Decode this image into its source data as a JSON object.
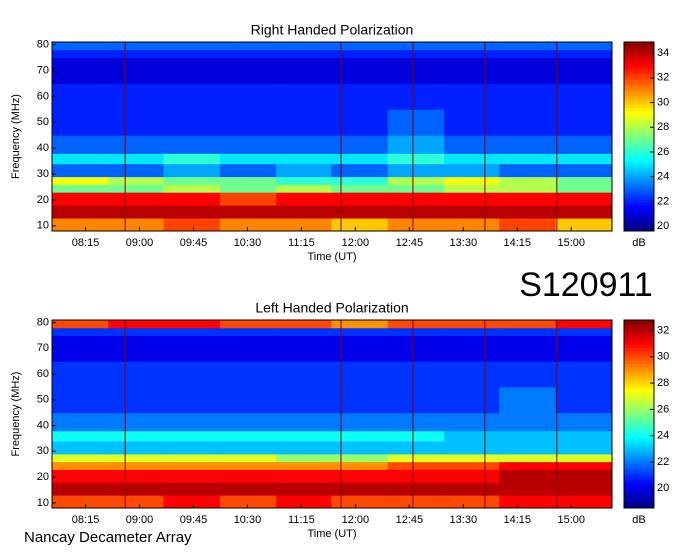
{
  "label": "S120911",
  "footer": "Nancay Decameter Array",
  "chart_data": [
    {
      "type": "heatmap",
      "title": "Right Handed Polarization",
      "x_label": "Time (UT)",
      "y_label": "Frequency (MHz)",
      "colorbar_label": "dB",
      "xlim": [
        467,
        934
      ],
      "ylim": [
        8,
        81
      ],
      "xticks": [
        {
          "value": 495,
          "label": "08:15"
        },
        {
          "value": 540,
          "label": "09:00"
        },
        {
          "value": 585,
          "label": "09:45"
        },
        {
          "value": 630,
          "label": "10:30"
        },
        {
          "value": 675,
          "label": "11:15"
        },
        {
          "value": 720,
          "label": "12:00"
        },
        {
          "value": 765,
          "label": "12:45"
        },
        {
          "value": 810,
          "label": "13:30"
        },
        {
          "value": 855,
          "label": "14:15"
        },
        {
          "value": 900,
          "label": "15:00"
        }
      ],
      "yticks": [
        10,
        20,
        30,
        40,
        50,
        60,
        70,
        80
      ],
      "clim": [
        19.6,
        34.9
      ],
      "cticks": [
        20,
        22,
        24,
        26,
        28,
        30,
        32,
        34
      ],
      "colormap": "jet",
      "markers": {
        "x": [
          528,
          708,
          768,
          828,
          888
        ],
        "color": "#8b0000"
      },
      "x_bins": [
        467,
        514,
        560,
        607,
        654,
        700,
        747,
        794,
        840,
        887,
        934
      ],
      "y_bins": [
        8,
        13,
        18,
        23,
        26,
        29,
        34,
        38,
        45,
        55,
        65,
        75,
        78,
        81
      ],
      "values": [
        [
          31,
          31,
          32,
          31,
          31,
          30,
          31,
          31,
          32,
          30
        ],
        [
          34,
          34,
          34,
          34,
          34,
          34,
          34,
          34,
          34,
          34
        ],
        [
          33,
          33,
          33,
          32,
          33,
          33,
          33,
          33,
          33,
          33
        ],
        [
          27,
          27,
          28,
          27,
          28,
          27,
          27,
          28,
          28,
          27
        ],
        [
          29,
          28,
          27,
          27,
          26,
          26,
          28,
          29,
          28,
          27
        ],
        [
          23,
          23,
          24,
          23,
          24,
          23,
          24,
          24,
          23,
          23
        ],
        [
          25,
          25,
          26,
          25,
          25,
          25,
          26,
          25,
          25,
          25
        ],
        [
          23,
          23,
          23,
          23,
          23,
          23,
          24,
          23,
          23,
          23
        ],
        [
          22,
          22,
          22,
          22,
          22,
          22,
          23,
          22,
          22,
          22
        ],
        [
          22,
          22,
          22,
          22,
          22,
          22,
          22,
          22,
          22,
          22
        ],
        [
          21,
          21,
          21,
          21,
          21,
          21,
          21,
          21,
          21,
          21
        ],
        [
          22,
          22,
          22,
          22,
          22,
          22,
          22,
          22,
          22,
          22
        ],
        [
          23,
          23,
          23,
          23,
          23,
          23,
          23,
          23,
          23,
          23
        ]
      ]
    },
    {
      "type": "heatmap",
      "title": "Left Handed Polarization",
      "x_label": "Time (UT)",
      "y_label": "Frequency (MHz)",
      "colorbar_label": "dB",
      "xlim": [
        467,
        934
      ],
      "ylim": [
        8,
        81
      ],
      "xticks": [
        {
          "value": 495,
          "label": "08:15"
        },
        {
          "value": 540,
          "label": "09:00"
        },
        {
          "value": 585,
          "label": "09:45"
        },
        {
          "value": 630,
          "label": "10:30"
        },
        {
          "value": 675,
          "label": "11:15"
        },
        {
          "value": 720,
          "label": "12:00"
        },
        {
          "value": 765,
          "label": "12:45"
        },
        {
          "value": 810,
          "label": "13:30"
        },
        {
          "value": 855,
          "label": "14:15"
        },
        {
          "value": 900,
          "label": "15:00"
        }
      ],
      "yticks": [
        10,
        20,
        30,
        40,
        50,
        60,
        70,
        80
      ],
      "clim": [
        18.5,
        32.8
      ],
      "cticks": [
        20,
        22,
        24,
        26,
        28,
        30,
        32
      ],
      "colormap": "jet",
      "markers": {
        "x": [
          528,
          708,
          768,
          828,
          888
        ],
        "color": "#8b0000"
      },
      "x_bins": [
        467,
        514,
        560,
        607,
        654,
        700,
        747,
        794,
        840,
        887,
        934
      ],
      "y_bins": [
        8,
        13,
        18,
        23,
        26,
        29,
        34,
        38,
        45,
        55,
        65,
        75,
        78,
        81
      ],
      "values": [
        [
          30,
          30,
          31,
          30,
          31,
          30,
          30,
          30,
          31,
          31
        ],
        [
          32,
          32,
          32,
          32,
          32,
          32,
          32,
          32,
          32,
          32
        ],
        [
          31,
          31,
          31,
          31,
          31,
          31,
          31,
          31,
          32,
          32
        ],
        [
          29,
          29,
          29,
          29,
          29,
          29,
          30,
          30,
          31,
          31
        ],
        [
          27,
          27,
          27,
          27,
          26,
          26,
          27,
          27,
          27,
          27
        ],
        [
          23,
          23,
          23,
          23,
          23,
          23,
          23,
          23,
          23,
          23
        ],
        [
          24,
          24,
          24,
          24,
          24,
          24,
          24,
          23,
          23,
          23
        ],
        [
          22,
          22,
          22,
          22,
          22,
          22,
          22,
          22,
          22,
          22
        ],
        [
          21,
          21,
          21,
          21,
          21,
          21,
          21,
          21,
          22,
          21
        ],
        [
          21,
          21,
          21,
          21,
          21,
          21,
          21,
          21,
          21,
          21
        ],
        [
          20,
          20,
          20,
          20,
          20,
          20,
          20,
          20,
          20,
          20
        ],
        [
          21,
          21,
          21,
          21,
          21,
          21,
          21,
          21,
          21,
          21
        ],
        [
          30,
          31,
          31,
          30,
          30,
          29,
          30,
          30,
          30,
          31
        ]
      ]
    }
  ]
}
